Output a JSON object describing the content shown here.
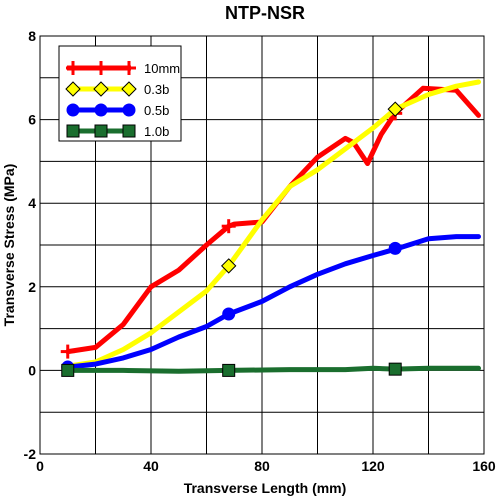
{
  "chart_data": {
    "type": "line",
    "title": "NTP-NSR",
    "xlabel": "Transverse Length (mm)",
    "ylabel": "Transverse Stress (MPa)",
    "xlim": [
      0,
      160
    ],
    "ylim": [
      -2,
      8
    ],
    "xticks": [
      0,
      40,
      80,
      120,
      160
    ],
    "yticks": [
      -2,
      0,
      2,
      4,
      6,
      8
    ],
    "grid": true,
    "legend_position": "top-left",
    "series": [
      {
        "name": "10mm",
        "color": "#ff0000",
        "marker": "plus",
        "x": [
          10,
          20,
          30,
          40,
          50,
          60,
          68,
          70,
          80,
          90,
          100,
          110,
          113,
          118,
          123,
          128,
          138,
          150,
          158
        ],
        "y": [
          0.45,
          0.55,
          1.1,
          2.0,
          2.4,
          3.0,
          3.45,
          3.5,
          3.55,
          4.4,
          5.1,
          5.55,
          5.45,
          4.95,
          5.65,
          6.15,
          6.75,
          6.7,
          6.1
        ],
        "marker_x": [
          10,
          68,
          128
        ],
        "marker_y": [
          0.45,
          3.45,
          6.15
        ]
      },
      {
        "name": "0.3b",
        "color": "#ffff00",
        "marker": "diamond",
        "x": [
          10,
          20,
          30,
          40,
          50,
          60,
          68,
          80,
          90,
          100,
          110,
          120,
          128,
          140,
          150,
          158
        ],
        "y": [
          0.1,
          0.2,
          0.5,
          0.9,
          1.4,
          1.9,
          2.5,
          3.6,
          4.4,
          4.8,
          5.3,
          5.8,
          6.25,
          6.6,
          6.8,
          6.9
        ],
        "marker_x": [
          68,
          128
        ],
        "marker_y": [
          2.5,
          6.25
        ]
      },
      {
        "name": "0.5b",
        "color": "#0000ff",
        "marker": "circle",
        "x": [
          10,
          20,
          30,
          40,
          50,
          60,
          68,
          80,
          90,
          100,
          110,
          120,
          128,
          140,
          150,
          158
        ],
        "y": [
          0.08,
          0.15,
          0.3,
          0.5,
          0.8,
          1.05,
          1.35,
          1.65,
          2.0,
          2.3,
          2.55,
          2.75,
          2.9,
          3.15,
          3.2,
          3.2
        ],
        "marker_x": [
          10,
          68,
          128
        ],
        "marker_y": [
          0.08,
          1.35,
          2.92
        ]
      },
      {
        "name": "1.0b",
        "color": "#1a6e2e",
        "marker": "square",
        "x": [
          10,
          30,
          50,
          68,
          90,
          110,
          120,
          128,
          140,
          158
        ],
        "y": [
          0.0,
          0.0,
          -0.02,
          0.0,
          0.02,
          0.02,
          0.05,
          0.03,
          0.05,
          0.05
        ],
        "marker_x": [
          10,
          68,
          128
        ],
        "marker_y": [
          0.0,
          0.0,
          0.03
        ]
      }
    ]
  }
}
